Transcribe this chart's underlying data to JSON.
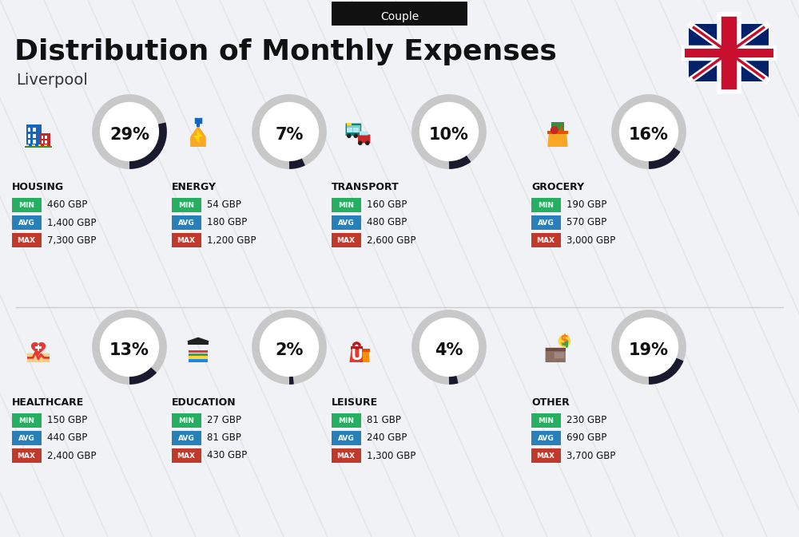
{
  "title": "Distribution of Monthly Expenses",
  "subtitle": "Liverpool",
  "tab_label": "Couple",
  "bg_color": "#f0f2f5",
  "categories": [
    {
      "name": "HOUSING",
      "pct": 29,
      "min": "460 GBP",
      "avg": "1,400 GBP",
      "max": "7,300 GBP",
      "row": 0,
      "col": 0
    },
    {
      "name": "ENERGY",
      "pct": 7,
      "min": "54 GBP",
      "avg": "180 GBP",
      "max": "1,200 GBP",
      "row": 0,
      "col": 1
    },
    {
      "name": "TRANSPORT",
      "pct": 10,
      "min": "160 GBP",
      "avg": "480 GBP",
      "max": "2,600 GBP",
      "row": 0,
      "col": 2
    },
    {
      "name": "GROCERY",
      "pct": 16,
      "min": "190 GBP",
      "avg": "570 GBP",
      "max": "3,000 GBP",
      "row": 0,
      "col": 3
    },
    {
      "name": "HEALTHCARE",
      "pct": 13,
      "min": "150 GBP",
      "avg": "440 GBP",
      "max": "2,400 GBP",
      "row": 1,
      "col": 0
    },
    {
      "name": "EDUCATION",
      "pct": 2,
      "min": "27 GBP",
      "avg": "81 GBP",
      "max": "430 GBP",
      "row": 1,
      "col": 1
    },
    {
      "name": "LEISURE",
      "pct": 4,
      "min": "81 GBP",
      "avg": "240 GBP",
      "max": "1,300 GBP",
      "row": 1,
      "col": 2
    },
    {
      "name": "OTHER",
      "pct": 19,
      "min": "230 GBP",
      "avg": "690 GBP",
      "max": "3,700 GBP",
      "row": 1,
      "col": 3
    }
  ],
  "min_color": "#27ae60",
  "avg_color": "#2980b9",
  "max_color": "#c0392b",
  "donut_filled_color": "#1a1a2e",
  "donut_empty_color": "#c8c8c8",
  "title_fontsize": 26,
  "subtitle_fontsize": 14,
  "pct_fontsize": 15,
  "name_fontsize": 9,
  "val_fontsize": 8.5
}
